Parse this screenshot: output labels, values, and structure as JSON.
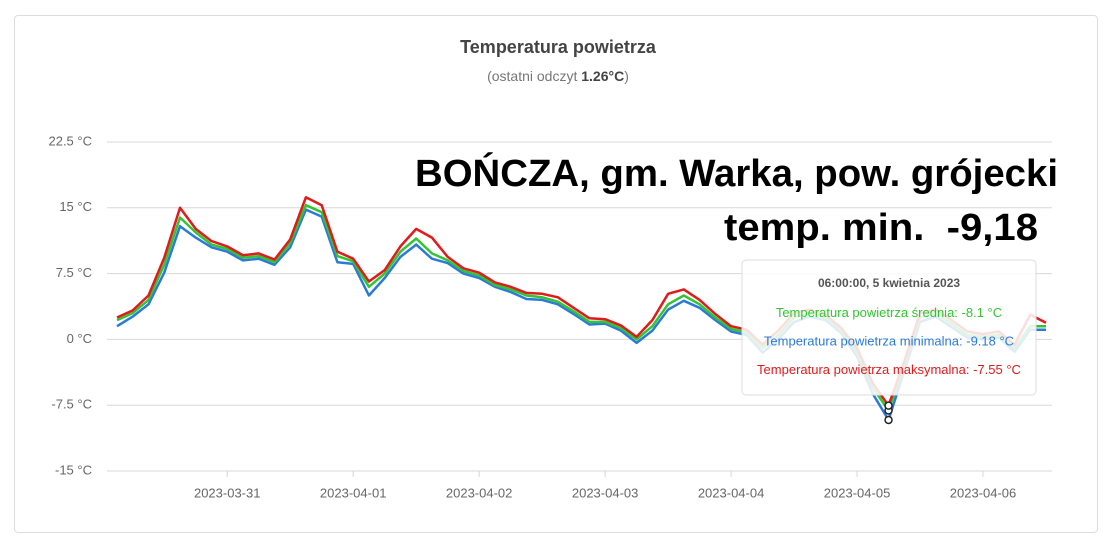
{
  "chart_data": {
    "type": "line",
    "title": "Temperatura powietrza",
    "subtitle": [
      "(ostatni odczyt ",
      "1.26°C",
      ")"
    ],
    "annotation": [
      "BOŃCZA, gm. Warka, pow. grójecki",
      "temp. min.  -9,18"
    ],
    "x": [
      "2023-03-30T03:00",
      "2023-03-30T06:00",
      "2023-03-30T09:00",
      "2023-03-30T12:00",
      "2023-03-30T15:00",
      "2023-03-30T18:00",
      "2023-03-30T21:00",
      "2023-03-31T00:00",
      "2023-03-31T03:00",
      "2023-03-31T06:00",
      "2023-03-31T09:00",
      "2023-03-31T12:00",
      "2023-03-31T15:00",
      "2023-03-31T18:00",
      "2023-03-31T21:00",
      "2023-04-01T00:00",
      "2023-04-01T03:00",
      "2023-04-01T06:00",
      "2023-04-01T09:00",
      "2023-04-01T12:00",
      "2023-04-01T15:00",
      "2023-04-01T18:00",
      "2023-04-01T21:00",
      "2023-04-02T00:00",
      "2023-04-02T03:00",
      "2023-04-02T06:00",
      "2023-04-02T09:00",
      "2023-04-02T12:00",
      "2023-04-02T15:00",
      "2023-04-02T18:00",
      "2023-04-02T21:00",
      "2023-04-03T00:00",
      "2023-04-03T03:00",
      "2023-04-03T06:00",
      "2023-04-03T09:00",
      "2023-04-03T12:00",
      "2023-04-03T15:00",
      "2023-04-03T18:00",
      "2023-04-03T21:00",
      "2023-04-04T00:00",
      "2023-04-04T03:00",
      "2023-04-04T06:00",
      "2023-04-04T09:00",
      "2023-04-04T12:00",
      "2023-04-04T15:00",
      "2023-04-04T18:00",
      "2023-04-04T21:00",
      "2023-04-05T00:00",
      "2023-04-05T03:00",
      "2023-04-05T06:00",
      "2023-04-05T09:00",
      "2023-04-05T12:00",
      "2023-04-05T15:00",
      "2023-04-05T18:00",
      "2023-04-05T21:00",
      "2023-04-06T00:00",
      "2023-04-06T03:00",
      "2023-04-06T06:00",
      "2023-04-06T09:00",
      "2023-04-06T12:00"
    ],
    "series": [
      {
        "name": "Temperatura powietrza średnia",
        "color": "#33c433",
        "values": [
          2.2,
          3.0,
          4.5,
          8.5,
          13.9,
          12.2,
          10.8,
          10.3,
          9.3,
          9.5,
          8.8,
          11,
          15.3,
          14.5,
          9.5,
          8.9,
          6.0,
          7.5,
          10,
          11.5,
          9.8,
          9.0,
          7.8,
          7.3,
          6.2,
          5.7,
          5.0,
          4.8,
          4.3,
          3.2,
          2.0,
          2.0,
          1.3,
          0.0,
          1.5,
          4.0,
          5.0,
          4.0,
          2.5,
          1.2,
          0.8,
          -1.0,
          0.5,
          2.5,
          3.0,
          2.5,
          1.0,
          -1.5,
          -5.5,
          -8.1,
          -3.0,
          2.5,
          3.0,
          1.8,
          0.5,
          0.3,
          0.5,
          -1.0,
          1.5,
          1.5
        ]
      },
      {
        "name": "Temperatura powietrza minimalna",
        "color": "#2b7bd6",
        "values": [
          1.5,
          2.6,
          4.0,
          7.6,
          12.9,
          11.6,
          10.5,
          10.0,
          9.0,
          9.2,
          8.5,
          10.5,
          14.8,
          14.0,
          8.8,
          8.6,
          5.0,
          7.0,
          9.4,
          10.8,
          9.2,
          8.7,
          7.5,
          7.0,
          6.0,
          5.4,
          4.6,
          4.5,
          4.0,
          2.9,
          1.7,
          1.8,
          1.0,
          -0.4,
          1.0,
          3.4,
          4.4,
          3.6,
          2.2,
          0.9,
          0.5,
          -1.5,
          0.0,
          2.0,
          2.6,
          2.2,
          0.7,
          -2.0,
          -6.2,
          -9.18,
          -3.6,
          2.0,
          2.6,
          1.4,
          0.2,
          0.0,
          0.2,
          -1.4,
          1.1,
          1.1
        ]
      },
      {
        "name": "Temperatura powietrza maksymalna",
        "color": "#e01b1b",
        "values": [
          2.5,
          3.3,
          5.0,
          9.3,
          15.0,
          12.6,
          11.2,
          10.6,
          9.6,
          9.8,
          9.1,
          11.4,
          16.2,
          15.3,
          10.0,
          9.2,
          6.6,
          7.9,
          10.6,
          12.6,
          11.6,
          9.4,
          8.1,
          7.6,
          6.5,
          6.0,
          5.3,
          5.2,
          4.8,
          3.6,
          2.4,
          2.3,
          1.6,
          0.3,
          2.2,
          5.2,
          5.7,
          4.5,
          2.9,
          1.5,
          1.1,
          -0.6,
          1.0,
          3.0,
          3.4,
          2.8,
          1.3,
          -1.0,
          -5.0,
          -7.55,
          -2.5,
          3.0,
          3.4,
          2.2,
          0.9,
          0.6,
          0.9,
          -0.6,
          2.8,
          1.9
        ]
      }
    ],
    "xlim": [
      "2023-03-30T03:00",
      "2023-04-06T12:00"
    ],
    "xticks": [
      "2023-03-31",
      "2023-04-01",
      "2023-04-02",
      "2023-04-03",
      "2023-04-04",
      "2023-04-05",
      "2023-04-06"
    ],
    "ylim": [
      -15,
      22.5
    ],
    "yticks": [
      {
        "value": -15,
        "label": "-15 °C"
      },
      {
        "value": -7.5,
        "label": "-7.5 °C"
      },
      {
        "value": 0,
        "label": "0 °C"
      },
      {
        "value": 7.5,
        "label": "7.5 °C"
      },
      {
        "value": 15,
        "label": "15 °C"
      },
      {
        "value": 22.5,
        "label": "22.5 °C"
      }
    ],
    "grid": true,
    "tooltip": {
      "title": "06:00:00, 5 kwietnia 2023",
      "items": [
        {
          "label": "Temperatura powietrza średnia:",
          "value": "-8.1 °C"
        },
        {
          "label": "Temperatura powietrza minimalna:",
          "value": "-9.18 °C"
        },
        {
          "label": "Temperatura powietrza maksymalna:",
          "value": "-7.55 °C"
        }
      ]
    }
  }
}
